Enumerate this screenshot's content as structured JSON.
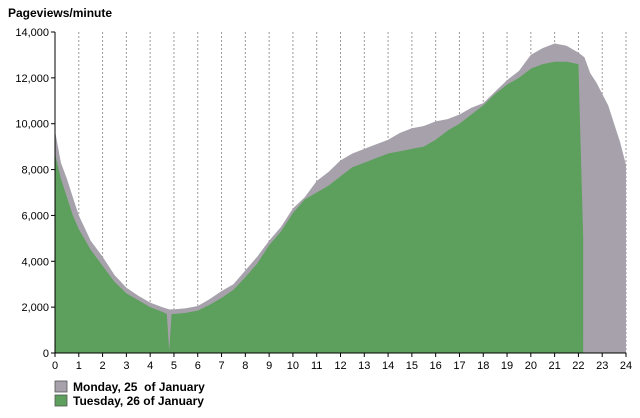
{
  "chart_data": {
    "type": "area",
    "title": "",
    "ylabel": "Pageviews/minute",
    "xlabel": "",
    "xlim": [
      0,
      24
    ],
    "ylim": [
      0,
      14000
    ],
    "x_ticks": [
      "0",
      "1",
      "2",
      "3",
      "4",
      "5",
      "6",
      "7",
      "8",
      "9",
      "10",
      "11",
      "12",
      "13",
      "14",
      "15",
      "16",
      "17",
      "18",
      "19",
      "20",
      "21",
      "22",
      "23",
      "24"
    ],
    "y_ticks": [
      "0",
      "2,000",
      "4,000",
      "6,000",
      "8,000",
      "10,000",
      "12,000",
      "14,000"
    ],
    "grid": "vertical dashed",
    "legend_position": "bottom-left",
    "series": [
      {
        "name": "Monday, 25  of January",
        "color": "#a6a1ab",
        "x": [
          0,
          0.25,
          0.5,
          0.75,
          1,
          1.5,
          2,
          2.5,
          3,
          3.5,
          4,
          4.5,
          4.8,
          5,
          5.5,
          6,
          6.5,
          7,
          7.5,
          8,
          8.5,
          9,
          9.5,
          10,
          10.5,
          11,
          11.5,
          12,
          12.5,
          13,
          13.5,
          14,
          14.5,
          15,
          15.5,
          16,
          16.5,
          17,
          17.5,
          18,
          18.5,
          19,
          19.5,
          20,
          20.5,
          21,
          21.5,
          22,
          22.25,
          22.5,
          22.75,
          23,
          23.25,
          23.5,
          23.75,
          24
        ],
        "y": [
          9700,
          8300,
          7600,
          6800,
          6000,
          4900,
          4200,
          3400,
          2850,
          2500,
          2200,
          2000,
          1900,
          1900,
          1950,
          2050,
          2350,
          2700,
          3000,
          3600,
          4200,
          4900,
          5500,
          6300,
          6800,
          7500,
          7900,
          8400,
          8700,
          8900,
          9100,
          9300,
          9600,
          9800,
          9900,
          10100,
          10200,
          10400,
          10700,
          10900,
          11400,
          11900,
          12300,
          13000,
          13300,
          13500,
          13400,
          13100,
          12900,
          12200,
          11800,
          11300,
          10800,
          10000,
          9200,
          8200
        ]
      },
      {
        "name": "Tuesday, 26 of January",
        "color": "#5d9f5c",
        "x": [
          0,
          0.25,
          0.5,
          0.75,
          1,
          1.5,
          2,
          2.5,
          3,
          3.5,
          4,
          4.5,
          4.7,
          4.8,
          4.9,
          5,
          5.5,
          6,
          6.5,
          7,
          7.5,
          8,
          8.5,
          9,
          9.5,
          10,
          10.5,
          11,
          11.5,
          12,
          12.5,
          13,
          13.5,
          14,
          14.5,
          15,
          15.5,
          16,
          16.5,
          17,
          17.5,
          18,
          18.5,
          19,
          19.5,
          20,
          20.5,
          21,
          21.5,
          22,
          22.2
        ],
        "y": [
          8700,
          7600,
          6800,
          6000,
          5400,
          4500,
          3800,
          3100,
          2600,
          2300,
          2000,
          1800,
          1700,
          100,
          1700,
          1700,
          1750,
          1850,
          2100,
          2400,
          2750,
          3300,
          3900,
          4700,
          5300,
          6100,
          6700,
          7000,
          7300,
          7700,
          8100,
          8300,
          8500,
          8700,
          8800,
          8900,
          9000,
          9300,
          9700,
          10000,
          10400,
          10800,
          11300,
          11700,
          12000,
          12400,
          12600,
          12700,
          12700,
          12600,
          5000
        ]
      }
    ]
  }
}
